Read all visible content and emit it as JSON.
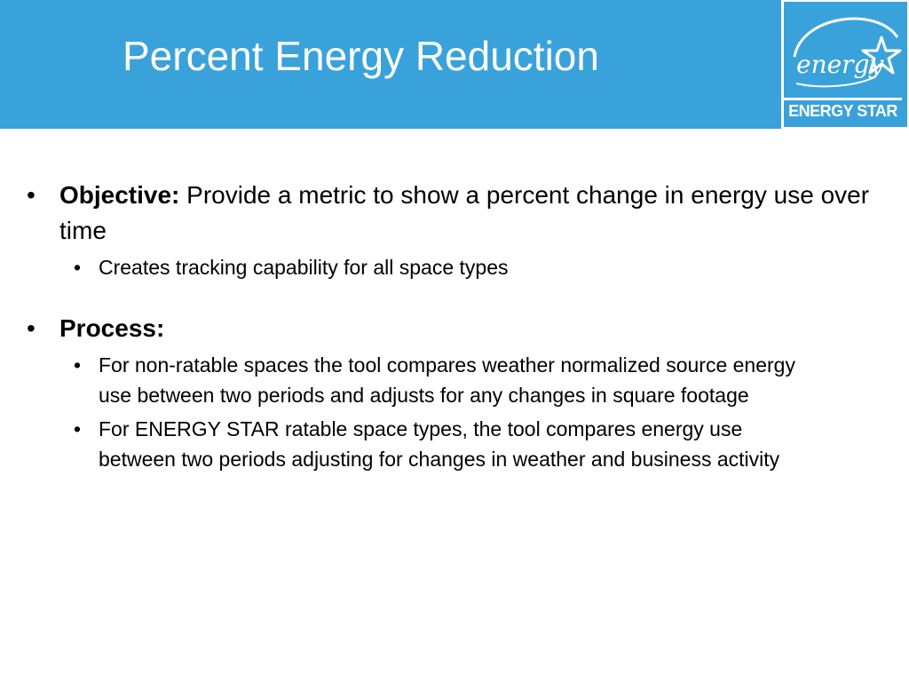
{
  "slide": {
    "title": "Percent Energy Reduction",
    "logo": {
      "script_text": "energy",
      "caption": "ENERGY STAR",
      "colors": {
        "background": "#3aa2da",
        "foreground": "#ffffff"
      }
    },
    "bullet_symbol": "•",
    "bullets": [
      {
        "label": "Objective:",
        "text": " Provide a metric to show a percent change in energy use over time",
        "sub_bullets": [
          {
            "text": "Creates tracking capability for all space types"
          }
        ]
      },
      {
        "label": "Process:",
        "text": "",
        "sub_bullets": [
          {
            "text": "For non-ratable spaces the tool compares weather normalized source energy use between two periods and adjusts for any changes in square footage"
          },
          {
            "text": "For ENERGY STAR ratable space types, the tool compares energy use between two periods adjusting for changes in weather and business activity"
          }
        ]
      }
    ],
    "colors": {
      "title_bar": "#3aa2da",
      "title_text": "#ffffff",
      "body_text": "#000000"
    }
  }
}
